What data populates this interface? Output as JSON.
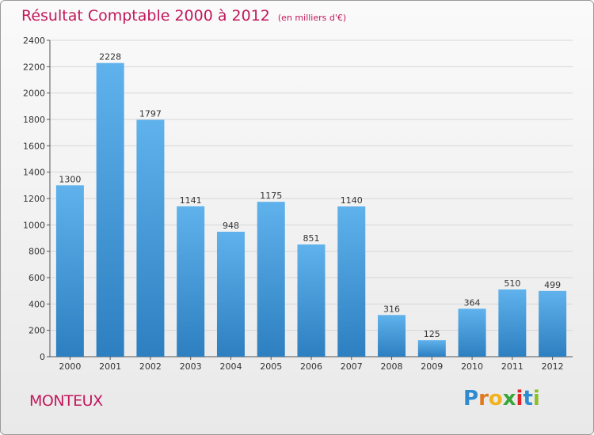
{
  "chart_data": {
    "type": "bar",
    "title": "Résultat Comptable 2000 à 2012",
    "subtitle": "(en milliers d'€)",
    "categories": [
      "2000",
      "2001",
      "2002",
      "2003",
      "2004",
      "2005",
      "2006",
      "2007",
      "2008",
      "2009",
      "2010",
      "2011",
      "2012"
    ],
    "values": [
      1300,
      2228,
      1797,
      1141,
      948,
      1175,
      851,
      1140,
      316,
      125,
      364,
      510,
      499
    ],
    "yticks": [
      0,
      200,
      400,
      600,
      800,
      1000,
      1200,
      1400,
      1600,
      1800,
      2000,
      2200,
      2400
    ],
    "ylim": [
      0,
      2400
    ],
    "xlabel": "",
    "ylabel": "",
    "grid": true,
    "bar_color": "#4a9fdc"
  },
  "commune_name": "MONTEUX",
  "logo": {
    "letters": [
      "P",
      "r",
      "o",
      "x",
      "i",
      "t",
      "i"
    ],
    "colors": [
      "#2e8bd0",
      "#e07a1f",
      "#f2b21b",
      "#3aa63a",
      "#e2242a",
      "#2e8bd0",
      "#8cbf26"
    ]
  }
}
